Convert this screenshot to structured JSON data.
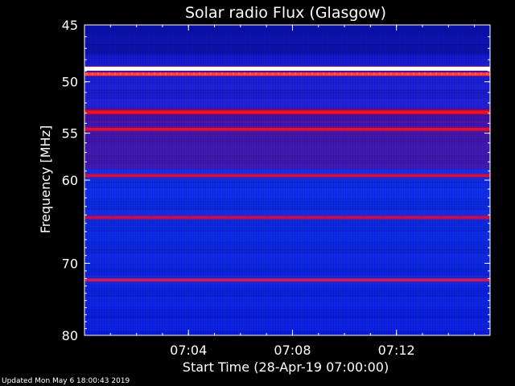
{
  "chart_data": {
    "type": "heatmap",
    "title": "Solar radio Flux (Glasgow)",
    "xlabel": "Start Time (28-Apr-19 07:00:00)",
    "ylabel": "Frequency [MHz]",
    "xlim_minutes": [
      0,
      15.6
    ],
    "ylim_mhz": [
      45,
      80
    ],
    "x_ticks": [
      {
        "label": "07:04",
        "value": 4
      },
      {
        "label": "07:08",
        "value": 8
      },
      {
        "label": "07:12",
        "value": 12
      }
    ],
    "y_ticks": [
      {
        "label": "45",
        "value": 45
      },
      {
        "label": "50",
        "value": 50
      },
      {
        "label": "55",
        "value": 55
      },
      {
        "label": "60",
        "value": 60
      },
      {
        "label": "70",
        "value": 70
      },
      {
        "label": "80",
        "value": 80
      }
    ],
    "y_scale": "log",
    "colormap": [
      "#00008c",
      "#0014ff",
      "#8c008c",
      "#ff0000",
      "#ffff00",
      "#ffffff"
    ],
    "emission_bands": [
      {
        "freq_mhz": 48.8,
        "intensity": "saturated",
        "color": "#ffffff"
      },
      {
        "freq_mhz": 49.3,
        "intensity": "high",
        "color": "#ff4040"
      },
      {
        "freq_mhz": 52.9,
        "intensity": "high",
        "color": "#ff1010"
      },
      {
        "freq_mhz": 54.6,
        "intensity": "medium",
        "color": "#e01030"
      },
      {
        "freq_mhz": 59.5,
        "intensity": "medium",
        "color": "#d01040"
      },
      {
        "freq_mhz": 64.3,
        "intensity": "medium",
        "color": "#c01050"
      },
      {
        "freq_mhz": 72.2,
        "intensity": "medium",
        "color": "#c02060"
      }
    ],
    "background_color": "#0a1ee6",
    "grid": false
  },
  "footer": {
    "updated": "Updated Mon May  6 18:00:43 2019"
  }
}
